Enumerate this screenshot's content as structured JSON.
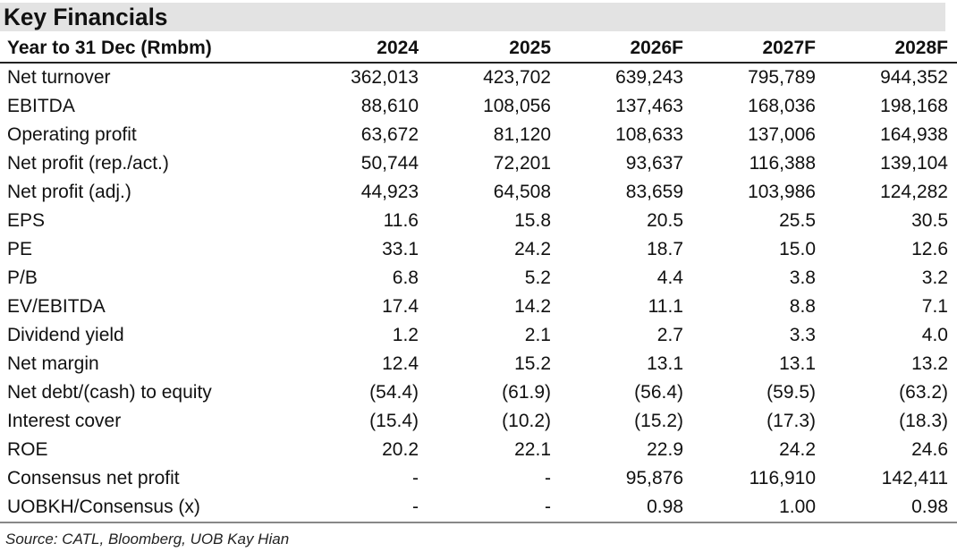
{
  "title": "Key Financials",
  "columns": [
    "Year to 31 Dec (Rmbm)",
    "2024",
    "2025",
    "2026F",
    "2027F",
    "2028F"
  ],
  "rows": [
    {
      "label": "Net turnover",
      "values": [
        "362,013",
        "423,702",
        "639,243",
        "795,789",
        "944,352"
      ]
    },
    {
      "label": "EBITDA",
      "values": [
        "88,610",
        "108,056",
        "137,463",
        "168,036",
        "198,168"
      ]
    },
    {
      "label": "Operating profit",
      "values": [
        "63,672",
        "81,120",
        "108,633",
        "137,006",
        "164,938"
      ]
    },
    {
      "label": "Net profit (rep./act.)",
      "values": [
        "50,744",
        "72,201",
        "93,637",
        "116,388",
        "139,104"
      ]
    },
    {
      "label": "Net profit (adj.)",
      "values": [
        "44,923",
        "64,508",
        "83,659",
        "103,986",
        "124,282"
      ]
    },
    {
      "label": "EPS",
      "values": [
        "11.6",
        "15.8",
        "20.5",
        "25.5",
        "30.5"
      ]
    },
    {
      "label": "PE",
      "values": [
        "33.1",
        "24.2",
        "18.7",
        "15.0",
        "12.6"
      ]
    },
    {
      "label": "P/B",
      "values": [
        "6.8",
        "5.2",
        "4.4",
        "3.8",
        "3.2"
      ]
    },
    {
      "label": "EV/EBITDA",
      "values": [
        "17.4",
        "14.2",
        "11.1",
        "8.8",
        "7.1"
      ]
    },
    {
      "label": "Dividend yield",
      "values": [
        "1.2",
        "2.1",
        "2.7",
        "3.3",
        "4.0"
      ]
    },
    {
      "label": "Net margin",
      "values": [
        "12.4",
        "15.2",
        "13.1",
        "13.1",
        "13.2"
      ]
    },
    {
      "label": "Net debt/(cash) to equity",
      "values": [
        "(54.4)",
        "(61.9)",
        "(56.4)",
        "(59.5)",
        "(63.2)"
      ]
    },
    {
      "label": "Interest cover",
      "values": [
        "(15.4)",
        "(10.2)",
        "(15.2)",
        "(17.3)",
        "(18.3)"
      ]
    },
    {
      "label": "ROE",
      "values": [
        "20.2",
        "22.1",
        "22.9",
        "24.2",
        "24.6"
      ]
    },
    {
      "label": "Consensus net profit",
      "values": [
        "-",
        "-",
        "95,876",
        "116,910",
        "142,411"
      ]
    },
    {
      "label": "UOBKH/Consensus (x)",
      "values": [
        "-",
        "-",
        "0.98",
        "1.00",
        "0.98"
      ]
    }
  ],
  "source": "Source: CATL, Bloomberg, UOB Kay Hian"
}
